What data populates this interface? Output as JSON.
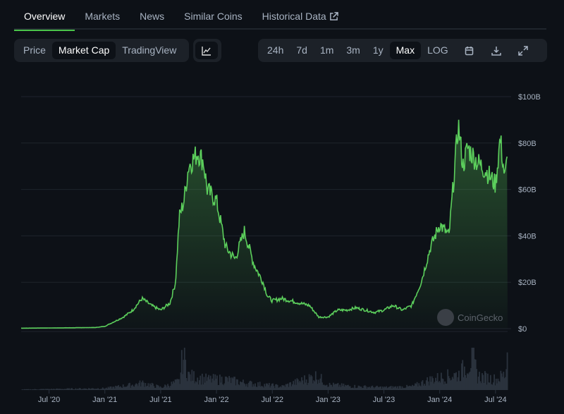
{
  "tabs": [
    {
      "label": "Overview"
    },
    {
      "label": "Markets"
    },
    {
      "label": "News"
    },
    {
      "label": "Similar Coins"
    },
    {
      "label": "Historical Data"
    }
  ],
  "view_buttons": [
    "Price",
    "Market Cap",
    "TradingView"
  ],
  "range_buttons": [
    "24h",
    "7d",
    "1m",
    "3m",
    "1y",
    "Max",
    "LOG"
  ],
  "watermark": "CoinGecko",
  "colors": {
    "line": "#5ccf5c",
    "accent": "#4ac44a",
    "volume": "#2a323d"
  },
  "chart_data": {
    "type": "area",
    "title": "Market Cap",
    "ylabel": "",
    "xlabel": "",
    "ylim": [
      0,
      100
    ],
    "yticks": [
      "$0",
      "$20B",
      "$40B",
      "$60B",
      "$80B",
      "$100B"
    ],
    "ytick_values": [
      0,
      20,
      40,
      60,
      80,
      100
    ],
    "xticks": [
      "Jul '20",
      "Jan '21",
      "Jul '21",
      "Jan '22",
      "Jul '22",
      "Jan '23",
      "Jul '23",
      "Jan '24",
      "Jul '24"
    ],
    "xtick_months": [
      3,
      9,
      15,
      21,
      27,
      33,
      39,
      45,
      51
    ],
    "x_start": "2020-04",
    "x_range_months": [
      0,
      52.3
    ],
    "series": [
      {
        "name": "Market Cap ($B)",
        "months": [
          0,
          3,
          6,
          8,
          9,
          10,
          11,
          12,
          13,
          14,
          15,
          16,
          16.6,
          17,
          17.5,
          18,
          19,
          19.6,
          20,
          21,
          22,
          23,
          24,
          25,
          26,
          26.5,
          27,
          28,
          29,
          30,
          31,
          32,
          33,
          34,
          35,
          36,
          37,
          38,
          39,
          40,
          41,
          42,
          43,
          44,
          45,
          46,
          47,
          47.5,
          48,
          49,
          50,
          51,
          51.5,
          52,
          52.3
        ],
        "values": [
          0.2,
          0.3,
          0.4,
          0.5,
          1,
          3,
          5,
          8,
          13,
          10,
          8,
          11,
          20,
          48,
          55,
          70,
          76,
          72,
          60,
          55,
          35,
          30,
          42,
          28,
          20,
          14,
          12,
          13,
          12,
          11,
          10,
          5,
          5,
          8,
          8,
          9,
          8,
          7,
          8,
          10,
          8,
          10,
          20,
          35,
          45,
          40,
          88,
          70,
          78,
          72,
          68,
          62,
          82,
          65,
          74
        ]
      }
    ],
    "volume": {
      "months": [
        0,
        9,
        12,
        13,
        15,
        17,
        17.3,
        18,
        20,
        22,
        24,
        26,
        28,
        31.7,
        33,
        36,
        39,
        42,
        43,
        44,
        45,
        47,
        48.5,
        49,
        51,
        52,
        52.2
      ],
      "values": [
        0.3,
        1,
        3,
        4,
        1.5,
        5,
        20,
        8,
        6,
        6,
        4,
        3,
        2,
        8,
        3,
        2,
        1.5,
        2,
        4,
        6,
        7,
        9,
        18,
        8,
        6,
        9,
        22
      ]
    },
    "grid": true,
    "legend": "none"
  }
}
